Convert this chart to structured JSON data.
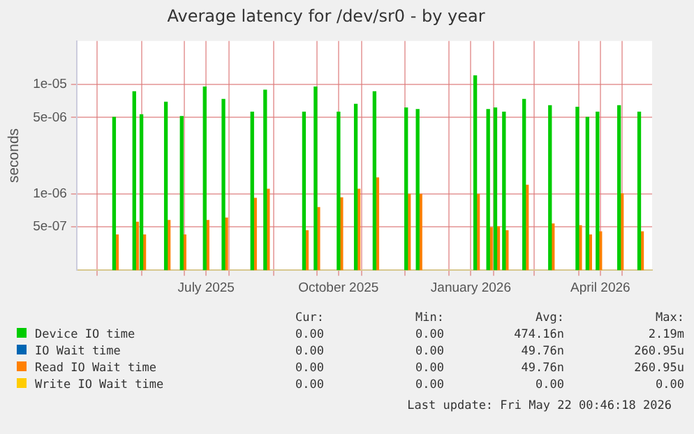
{
  "chart_data": {
    "type": "bar",
    "title": "Average latency for /dev/sr0 - by year",
    "ylabel": "seconds",
    "x": [
      "2025-05-14",
      "2025-05-28",
      "2025-06-02",
      "2025-06-19",
      "2025-06-30",
      "2025-07-16",
      "2025-07-29",
      "2025-08-18",
      "2025-08-27",
      "2025-09-23",
      "2025-10-01",
      "2025-10-17",
      "2025-10-29",
      "2025-11-11",
      "2025-12-03",
      "2025-12-11",
      "2026-01-20",
      "2026-01-29",
      "2026-02-03",
      "2026-02-09",
      "2026-02-23",
      "2026-03-13",
      "2026-04-01",
      "2026-04-08",
      "2026-04-15",
      "2026-04-30",
      "2026-05-14"
    ],
    "series": [
      {
        "name": "Device IO time",
        "color": "#00cc00",
        "values": [
          5e-06,
          8.6e-06,
          5.3e-06,
          6.9e-06,
          5.1e-06,
          9.5e-06,
          7.3e-06,
          5.6e-06,
          8.9e-06,
          5.6e-06,
          9.5e-06,
          5.6e-06,
          6.6e-06,
          8.6e-06,
          6.1e-06,
          5.9e-06,
          1.2e-05,
          5.9e-06,
          6.1e-06,
          5.6e-06,
          7.3e-06,
          6.4e-06,
          6.2e-06,
          5e-06,
          5.6e-06,
          6.4e-06,
          5.6e-06
        ]
      },
      {
        "name": "IO Wait time",
        "color": "#0066b3",
        "values": [
          null,
          null,
          null,
          null,
          null,
          null,
          null,
          null,
          null,
          null,
          null,
          null,
          null,
          null,
          null,
          null,
          null,
          null,
          null,
          null,
          null,
          null,
          null,
          null,
          null,
          null,
          null
        ]
      },
      {
        "name": "Read IO Wait time",
        "color": "#ff8000",
        "values": [
          4.2e-07,
          5.5e-07,
          4.2e-07,
          5.7e-07,
          4.2e-07,
          5.7e-07,
          6e-07,
          9.1e-07,
          1.1e-06,
          4.6e-07,
          7.5e-07,
          9.2e-07,
          1.1e-06,
          1.4e-06,
          9.9e-07,
          9.9e-07,
          9.9e-07,
          4.9e-07,
          5e-07,
          4.6e-07,
          1.2e-06,
          5.3e-07,
          5.1e-07,
          4.2e-07,
          4.5e-07,
          1e-06,
          4.5e-07
        ]
      },
      {
        "name": "Write IO Wait time",
        "color": "#ffcc00",
        "values": [
          null,
          null,
          null,
          null,
          null,
          null,
          null,
          null,
          null,
          null,
          null,
          null,
          null,
          null,
          null,
          null,
          null,
          null,
          null,
          null,
          null,
          null,
          null,
          null,
          null,
          null,
          null
        ]
      }
    ],
    "log": "y",
    "xlim": [
      "2025-04-17",
      "2026-05-22"
    ],
    "xticks": [
      {
        "value": "2025-05-01",
        "label": null
      },
      {
        "value": "2025-06-01",
        "label": null
      },
      {
        "value": "2025-07-01",
        "label": null
      },
      {
        "value": "2025-07-16",
        "label": "July 2025"
      },
      {
        "value": "2025-08-01",
        "label": null
      },
      {
        "value": "2025-09-01",
        "label": null
      },
      {
        "value": "2025-10-01",
        "label": null
      },
      {
        "value": "2025-10-16",
        "label": "October 2025"
      },
      {
        "value": "2025-11-01",
        "label": null
      },
      {
        "value": "2025-12-01",
        "label": null
      },
      {
        "value": "2026-01-01",
        "label": null
      },
      {
        "value": "2026-01-16",
        "label": "January 2026"
      },
      {
        "value": "2026-02-01",
        "label": null
      },
      {
        "value": "2026-03-01",
        "label": null
      },
      {
        "value": "2026-04-01",
        "label": null
      },
      {
        "value": "2026-04-16",
        "label": "April 2026"
      },
      {
        "value": "2026-05-01",
        "label": null
      }
    ],
    "ylim": [
      2e-07,
      2.5e-05
    ],
    "yticks": [
      {
        "value": 5e-07,
        "label": "5e-07"
      },
      {
        "value": 1e-06,
        "label": "1e-06"
      },
      {
        "value": 5e-06,
        "label": "5e-06"
      },
      {
        "value": 1e-05,
        "label": "1e-05"
      }
    ],
    "grid": true,
    "legend": "bottom",
    "annotations": [
      "Cur:",
      "Min:",
      "Avg:",
      "Max:",
      "0.00",
      "0.00",
      "474.16n",
      "2.19m",
      "0.00",
      "0.00",
      "49.76n",
      "260.95u",
      "0.00",
      "0.00",
      "49.76n",
      "260.95u",
      "0.00",
      "0.00",
      "0.00",
      "0.00",
      "Last update: Fri May 22 00:46:18 2026"
    ]
  }
}
